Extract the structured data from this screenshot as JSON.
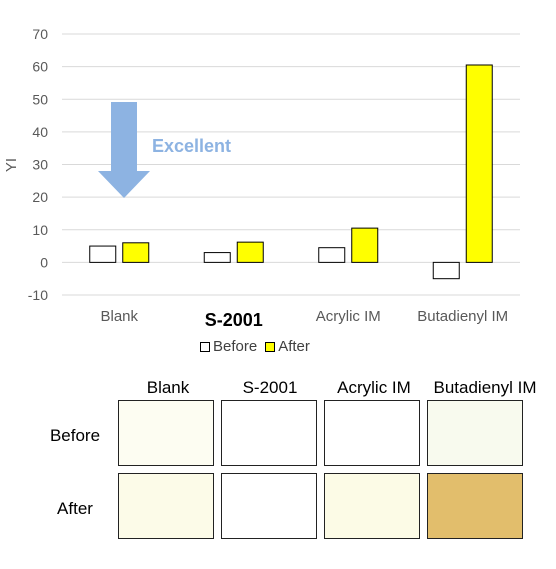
{
  "chart_data": {
    "type": "bar",
    "title": "",
    "xlabel": "",
    "ylabel": "YI",
    "ylim": [
      -10,
      70
    ],
    "yticks": [
      70,
      60,
      50,
      40,
      30,
      20,
      10,
      0,
      -10
    ],
    "categories": [
      "Blank",
      "S-2001",
      "Acrylic IM",
      "Butadienyl IM"
    ],
    "emphasized_category": "S-2001",
    "series": [
      {
        "name": "Before",
        "color": "#ffffff",
        "values": [
          5,
          3,
          4.5,
          -5
        ]
      },
      {
        "name": "After",
        "color": "#ffff00",
        "values": [
          6,
          6.2,
          10.5,
          60.5
        ]
      }
    ],
    "grid": true,
    "legend_position": "bottom",
    "annotation": {
      "text": "Excellent",
      "color": "#8db3e2",
      "arrow": "down"
    }
  },
  "samples": {
    "columns": [
      "Blank",
      "S-2001",
      "Acrylic IM",
      "Butadienyl IM"
    ],
    "rows": [
      {
        "label": "Before",
        "colors": [
          "#fdfdf2",
          "#ffffff",
          "#ffffff",
          "#f8faee"
        ]
      },
      {
        "label": "After",
        "colors": [
          "#fcfbe8",
          "#ffffff",
          "#fcfbe6",
          "#e2be6c"
        ]
      }
    ]
  }
}
